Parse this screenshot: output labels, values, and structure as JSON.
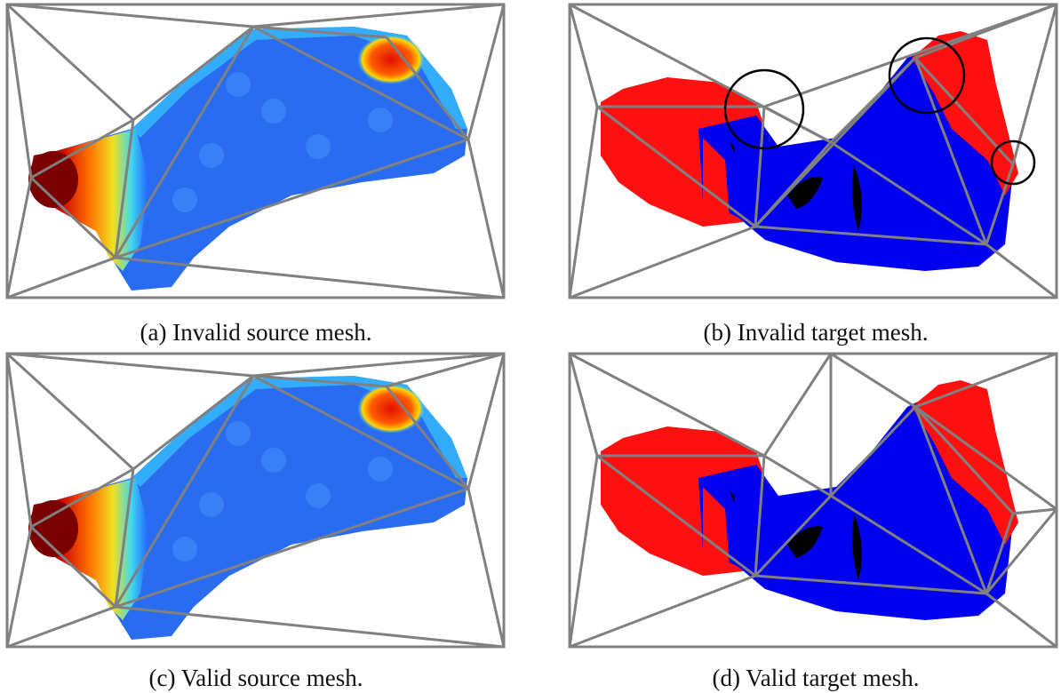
{
  "panels": [
    {
      "caption": "(a) Invalid source mesh."
    },
    {
      "caption": "(b) Invalid target mesh."
    },
    {
      "caption": "(c) Valid source mesh."
    },
    {
      "caption": "(d) Valid target mesh."
    }
  ]
}
